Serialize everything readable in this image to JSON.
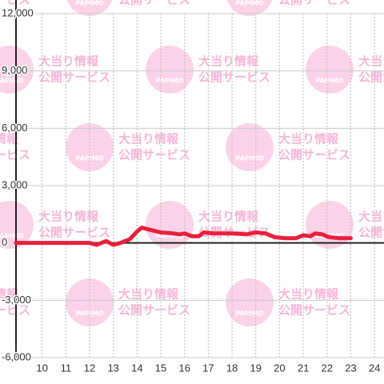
{
  "chart_data": {
    "type": "line",
    "watermark": {
      "title": "大当り情報",
      "subtitle": "公開サービス",
      "logo": "PAPIMO"
    },
    "x": [
      8.9,
      12.0,
      12.3,
      12.7,
      13.0,
      13.3,
      13.7,
      14.0,
      14.2,
      14.5,
      15.0,
      15.5,
      15.8,
      16.0,
      16.3,
      16.6,
      16.8,
      17.2,
      18.0,
      18.6,
      19.0,
      19.4,
      19.8,
      20.2,
      20.7,
      21.0,
      21.3,
      21.5,
      21.8,
      22.1,
      22.5,
      23.0
    ],
    "series": [
      {
        "color": "#e8203c",
        "values": [
          0,
          0,
          -100,
          100,
          -100,
          0,
          200,
          600,
          800,
          700,
          550,
          500,
          450,
          500,
          350,
          350,
          550,
          500,
          500,
          450,
          550,
          500,
          300,
          250,
          250,
          400,
          350,
          500,
          450,
          300,
          250,
          250
        ]
      }
    ],
    "xlim": [
      8.9,
      24.4
    ],
    "xticks": [
      10,
      11,
      12,
      13,
      14,
      15,
      16,
      17,
      18,
      19,
      20,
      21,
      22,
      23,
      24
    ],
    "ylim": [
      -6000,
      12000
    ],
    "yticks": [
      {
        "value": -6000,
        "label": "-6,000"
      },
      {
        "value": -3000,
        "label": "-3,000"
      },
      0,
      {
        "value": 3000,
        "label": "3,000"
      },
      {
        "value": 6000,
        "label": "6,000"
      },
      {
        "value": 9000,
        "label": "9,000"
      },
      {
        "value": 12000,
        "label": "12,000"
      }
    ],
    "grid": true
  }
}
